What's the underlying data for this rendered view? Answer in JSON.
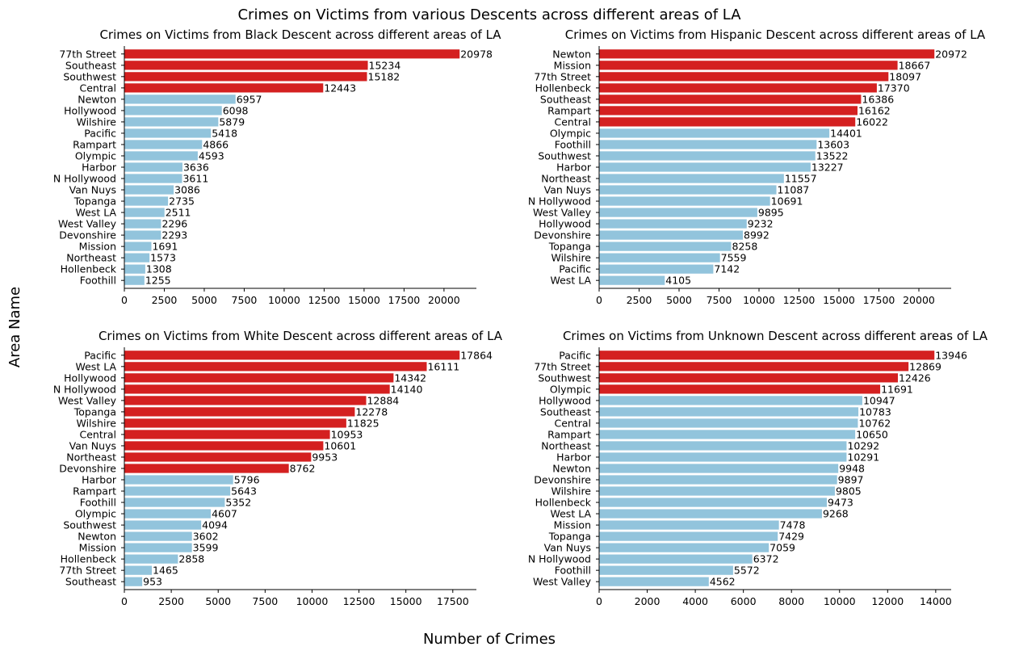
{
  "title": "Crimes on Victims from various Descents across different areas of LA",
  "xlabel": "Number of Crimes",
  "ylabel": "Area Name",
  "colors": {
    "highlight": "#d42020",
    "normal": "#92c4dc"
  },
  "chart_data": [
    {
      "type": "bar",
      "orientation": "horizontal",
      "title": "Crimes on Victims from Black Descent across different areas of LA",
      "categories": [
        "77th Street",
        "Southeast",
        "Southwest",
        "Central",
        "Newton",
        "Hollywood",
        "Wilshire",
        "Pacific",
        "Rampart",
        "Olympic",
        "Harbor",
        "N Hollywood",
        "Van Nuys",
        "Topanga",
        "West LA",
        "West Valley",
        "Devonshire",
        "Mission",
        "Northeast",
        "Hollenbeck",
        "Foothill"
      ],
      "values": [
        20978,
        15234,
        15182,
        12443,
        6957,
        6098,
        5879,
        5418,
        4866,
        4593,
        3636,
        3611,
        3086,
        2735,
        2511,
        2296,
        2293,
        1691,
        1573,
        1308,
        1255
      ],
      "highlight_count": 4,
      "xticks": [
        0,
        2500,
        5000,
        7500,
        10000,
        12500,
        15000,
        17500,
        20000
      ],
      "xlim": [
        0,
        22027
      ]
    },
    {
      "type": "bar",
      "orientation": "horizontal",
      "title": "Crimes on Victims from Hispanic Descent across different areas of LA",
      "categories": [
        "Newton",
        "Mission",
        "77th Street",
        "Hollenbeck",
        "Southeast",
        "Rampart",
        "Central",
        "Olympic",
        "Foothill",
        "Southwest",
        "Harbor",
        "Northeast",
        "Van Nuys",
        "N Hollywood",
        "West Valley",
        "Hollywood",
        "Devonshire",
        "Topanga",
        "Wilshire",
        "Pacific",
        "West LA"
      ],
      "values": [
        20972,
        18667,
        18097,
        17370,
        16386,
        16162,
        16022,
        14401,
        13603,
        13522,
        13227,
        11557,
        11087,
        10691,
        9895,
        9232,
        8992,
        8258,
        7559,
        7142,
        4105
      ],
      "highlight_count": 7,
      "xticks": [
        0,
        2500,
        5000,
        7500,
        10000,
        12500,
        15000,
        17500,
        20000
      ],
      "xlim": [
        0,
        22021
      ]
    },
    {
      "type": "bar",
      "orientation": "horizontal",
      "title": "Crimes on Victims from White Descent across different areas of LA",
      "categories": [
        "Pacific",
        "West LA",
        "Hollywood",
        "N Hollywood",
        "West Valley",
        "Topanga",
        "Wilshire",
        "Central",
        "Van Nuys",
        "Northeast",
        "Devonshire",
        "Harbor",
        "Rampart",
        "Foothill",
        "Olympic",
        "Southwest",
        "Newton",
        "Mission",
        "Hollenbeck",
        "77th Street",
        "Southeast"
      ],
      "values": [
        17864,
        16111,
        14342,
        14140,
        12884,
        12278,
        11825,
        10953,
        10601,
        9953,
        8762,
        5796,
        5643,
        5352,
        4607,
        4094,
        3602,
        3599,
        2858,
        1465,
        953
      ],
      "highlight_count": 11,
      "xticks": [
        0,
        2500,
        5000,
        7500,
        10000,
        12500,
        15000,
        17500
      ],
      "xlim": [
        0,
        18757
      ]
    },
    {
      "type": "bar",
      "orientation": "horizontal",
      "title": "Crimes on Victims from Unknown Descent across different areas of LA",
      "categories": [
        "Pacific",
        "77th Street",
        "Southwest",
        "Olympic",
        "Hollywood",
        "Southeast",
        "Central",
        "Rampart",
        "Northeast",
        "Harbor",
        "Newton",
        "Devonshire",
        "Wilshire",
        "Hollenbeck",
        "West LA",
        "Mission",
        "Topanga",
        "Van Nuys",
        "N Hollywood",
        "Foothill",
        "West Valley"
      ],
      "values": [
        13946,
        12869,
        12426,
        11691,
        10947,
        10783,
        10762,
        10650,
        10292,
        10291,
        9948,
        9897,
        9805,
        9473,
        9268,
        7478,
        7429,
        7059,
        6372,
        5572,
        4562
      ],
      "highlight_count": 4,
      "xticks": [
        0,
        2000,
        4000,
        6000,
        8000,
        10000,
        12000,
        14000
      ],
      "xlim": [
        0,
        14643
      ]
    }
  ]
}
